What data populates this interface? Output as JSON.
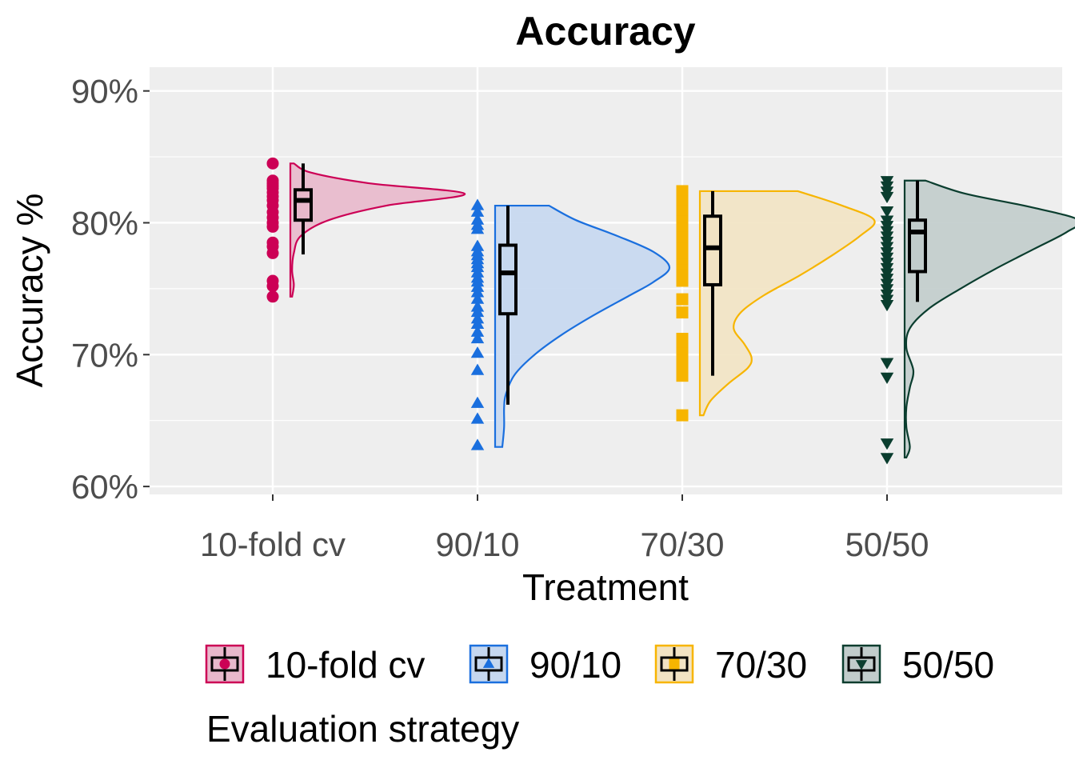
{
  "chart_data": {
    "type": "raincloud",
    "title": "Accuracy",
    "xlabel": "Treatment",
    "ylabel": "Accuracy %",
    "ylim": [
      59.4,
      91.8
    ],
    "yticks": [
      60,
      70,
      80,
      90
    ],
    "ytick_labels": [
      "60%",
      "70%",
      "80%",
      "90%"
    ],
    "grid": true,
    "categories": [
      "10-fold cv",
      "90/10",
      "70/30",
      "50/50"
    ],
    "legend": {
      "title": "Evaluation strategy",
      "position": "bottom",
      "entries": [
        "10-fold cv",
        "90/10",
        "70/30",
        "50/50"
      ]
    },
    "series": [
      {
        "name": "10-fold cv",
        "color": "#cc0055",
        "fill": "#e8b8cb",
        "marker": "circle",
        "points": [
          84.5,
          83.2,
          83.0,
          82.8,
          82.6,
          82.3,
          82.0,
          81.7,
          81.3,
          80.8,
          80.4,
          80.0,
          79.7,
          78.5,
          78.2,
          77.7,
          75.6,
          75.2,
          74.4
        ],
        "box": {
          "min": 77.6,
          "q1": 80.2,
          "median": 81.7,
          "q3": 82.5,
          "max": 84.5
        },
        "density": [
          [
            74.4,
            0.01
          ],
          [
            75.3,
            0.02
          ],
          [
            76.4,
            0.01
          ],
          [
            77.7,
            0.02
          ],
          [
            79.0,
            0.06
          ],
          [
            80.2,
            0.22
          ],
          [
            81.3,
            0.55
          ],
          [
            82.2,
            1.0
          ],
          [
            83.0,
            0.45
          ],
          [
            83.8,
            0.12
          ],
          [
            84.5,
            0.02
          ]
        ]
      },
      {
        "name": "90/10",
        "color": "#1a6fde",
        "fill": "#c5d7ef",
        "marker": "triangle-up",
        "points": [
          81.3,
          80.8,
          80.2,
          79.8,
          79.5,
          78.2,
          77.8,
          77.5,
          77.2,
          76.9,
          76.6,
          76.2,
          75.8,
          75.5,
          75.1,
          74.7,
          74.2,
          73.6,
          73.2,
          72.7,
          72.3,
          71.7,
          71.2,
          70.1,
          68.8,
          66.3,
          65.1,
          63.1
        ],
        "box": {
          "min": 66.2,
          "q1": 73.1,
          "median": 76.2,
          "q3": 78.3,
          "max": 81.3
        },
        "density": [
          [
            63.0,
            0.04
          ],
          [
            64.5,
            0.05
          ],
          [
            66.0,
            0.05
          ],
          [
            67.0,
            0.06
          ],
          [
            68.5,
            0.11
          ],
          [
            70.0,
            0.22
          ],
          [
            71.5,
            0.37
          ],
          [
            73.0,
            0.55
          ],
          [
            74.5,
            0.75
          ],
          [
            75.5,
            0.88
          ],
          [
            76.6,
            0.97
          ],
          [
            77.8,
            0.88
          ],
          [
            79.0,
            0.68
          ],
          [
            80.2,
            0.45
          ],
          [
            81.3,
            0.3
          ]
        ]
      },
      {
        "name": "70/30",
        "color": "#f7b500",
        "fill": "#f2e3c3",
        "marker": "square",
        "points": [
          82.4,
          82.0,
          81.6,
          81.2,
          80.9,
          80.5,
          80.1,
          79.7,
          79.3,
          78.9,
          78.4,
          78.0,
          77.6,
          77.2,
          76.8,
          76.4,
          76.0,
          75.6,
          74.2,
          73.2,
          71.2,
          70.7,
          70.1,
          69.6,
          69.2,
          68.4,
          65.4
        ],
        "box": {
          "min": 68.4,
          "q1": 75.3,
          "median": 78.1,
          "q3": 80.5,
          "max": 82.4
        },
        "density": [
          [
            65.4,
            0.02
          ],
          [
            66.5,
            0.06
          ],
          [
            67.8,
            0.16
          ],
          [
            69.0,
            0.27
          ],
          [
            69.8,
            0.29
          ],
          [
            70.8,
            0.25
          ],
          [
            72.0,
            0.19
          ],
          [
            73.2,
            0.23
          ],
          [
            74.5,
            0.36
          ],
          [
            76.0,
            0.56
          ],
          [
            77.5,
            0.74
          ],
          [
            79.0,
            0.9
          ],
          [
            80.2,
            0.98
          ],
          [
            81.3,
            0.8
          ],
          [
            82.4,
            0.55
          ]
        ]
      },
      {
        "name": "50/50",
        "color": "#0a3d2e",
        "fill": "#c1cccb",
        "marker": "triangle-down",
        "points": [
          83.2,
          82.8,
          82.4,
          82.0,
          80.9,
          80.2,
          79.8,
          79.4,
          79.0,
          78.6,
          78.2,
          77.8,
          77.4,
          77.0,
          76.6,
          76.2,
          75.8,
          75.4,
          75.0,
          74.6,
          74.2,
          73.8,
          69.4,
          68.3,
          63.3,
          62.2
        ],
        "box": {
          "min": 74.0,
          "q1": 76.3,
          "median": 79.3,
          "q3": 80.2,
          "max": 83.2
        },
        "density": [
          [
            62.2,
            0.01
          ],
          [
            63.0,
            0.03
          ],
          [
            64.5,
            0.01
          ],
          [
            66.0,
            0.01
          ],
          [
            67.5,
            0.03
          ],
          [
            68.8,
            0.05
          ],
          [
            70.5,
            0.01
          ],
          [
            72.0,
            0.03
          ],
          [
            73.5,
            0.14
          ],
          [
            75.0,
            0.32
          ],
          [
            76.5,
            0.52
          ],
          [
            78.0,
            0.74
          ],
          [
            79.3,
            0.93
          ],
          [
            80.2,
            1.0
          ],
          [
            81.2,
            0.72
          ],
          [
            82.2,
            0.35
          ],
          [
            83.2,
            0.12
          ]
        ]
      }
    ]
  }
}
